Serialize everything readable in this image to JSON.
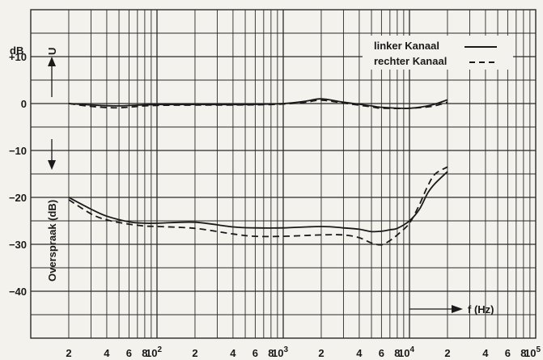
{
  "chart_data": {
    "type": "line",
    "x_scale": "log",
    "x_label": "f (Hz)",
    "xlim": [
      10,
      100000
    ],
    "ylim": [
      -50,
      20
    ],
    "y_unit_label": "dB",
    "y_tick_labels": [
      "+10",
      "0",
      "−10",
      "−20",
      "−30",
      "−40"
    ],
    "y_tick_values": [
      10,
      0,
      -10,
      -20,
      -30,
      -40
    ],
    "x_tick_labels": [
      {
        "value": 20,
        "label": "2"
      },
      {
        "value": 40,
        "label": "4"
      },
      {
        "value": 60,
        "label": "6"
      },
      {
        "value": 80,
        "label": "8"
      },
      {
        "value": 100,
        "label": "10",
        "exp": "2"
      },
      {
        "value": 200,
        "label": "2"
      },
      {
        "value": 400,
        "label": "4"
      },
      {
        "value": 600,
        "label": "6"
      },
      {
        "value": 800,
        "label": "8"
      },
      {
        "value": 1000,
        "label": "10",
        "exp": "3"
      },
      {
        "value": 2000,
        "label": "2"
      },
      {
        "value": 4000,
        "label": "4"
      },
      {
        "value": 6000,
        "label": "6"
      },
      {
        "value": 8000,
        "label": "8"
      },
      {
        "value": 10000,
        "label": "10",
        "exp": "4"
      },
      {
        "value": 20000,
        "label": "2"
      },
      {
        "value": 40000,
        "label": "4"
      },
      {
        "value": 60000,
        "label": "6"
      },
      {
        "value": 80000,
        "label": "8"
      },
      {
        "value": 100000,
        "label": "10",
        "exp": "5"
      }
    ],
    "annotations": {
      "upper_arrow_label": "U",
      "lower_arrow_label": "Overspraak  (dB)"
    },
    "legend": {
      "placement": "top-right"
    },
    "series": [
      {
        "name": "linker Kanaal",
        "group": "response",
        "style": "solid",
        "x": [
          20,
          30,
          50,
          100,
          500,
          1000,
          1500,
          2000,
          3000,
          5000,
          6000,
          10000,
          15000,
          20000
        ],
        "y": [
          0,
          -0.3,
          -0.5,
          -0.2,
          -0.2,
          0,
          0.5,
          1,
          0.3,
          -0.5,
          -0.8,
          -1,
          -0.3,
          0.8
        ]
      },
      {
        "name": "rechter Kanaal",
        "group": "response",
        "style": "dashed",
        "x": [
          20,
          30,
          50,
          100,
          500,
          1000,
          1500,
          2000,
          3000,
          5000,
          6000,
          10000,
          15000,
          20000
        ],
        "y": [
          0,
          -0.6,
          -0.9,
          -0.4,
          -0.3,
          -0.1,
          0.3,
          0.7,
          0.1,
          -0.7,
          -1,
          -1,
          -0.6,
          0.3
        ]
      },
      {
        "name": "linker Kanaal",
        "group": "crosstalk",
        "style": "solid",
        "x": [
          20,
          30,
          40,
          60,
          80,
          100,
          200,
          400,
          600,
          1000,
          2000,
          3000,
          4000,
          5000,
          6000,
          7000,
          8000,
          10000,
          12000,
          14000,
          16000,
          20000
        ],
        "y": [
          -20,
          -22.5,
          -24,
          -25.2,
          -25.5,
          -25.5,
          -25.3,
          -26.3,
          -26.5,
          -26.5,
          -26.2,
          -26.5,
          -26.8,
          -27.3,
          -27.2,
          -26.9,
          -26.6,
          -25,
          -22.5,
          -19,
          -17,
          -14.5
        ]
      },
      {
        "name": "rechter Kanaal",
        "group": "crosstalk",
        "style": "dashed",
        "x": [
          20,
          30,
          40,
          60,
          80,
          100,
          200,
          400,
          600,
          1000,
          2000,
          3000,
          4000,
          5000,
          6000,
          7000,
          8000,
          10000,
          12000,
          14000,
          16000,
          20000
        ],
        "y": [
          -20.5,
          -23.5,
          -24.8,
          -25.7,
          -26.1,
          -26.2,
          -26.6,
          -27.8,
          -28.3,
          -28.3,
          -28,
          -28,
          -28.6,
          -29.7,
          -30.1,
          -29.2,
          -28,
          -25.5,
          -21.5,
          -17.5,
          -15,
          -13.5
        ]
      }
    ]
  }
}
